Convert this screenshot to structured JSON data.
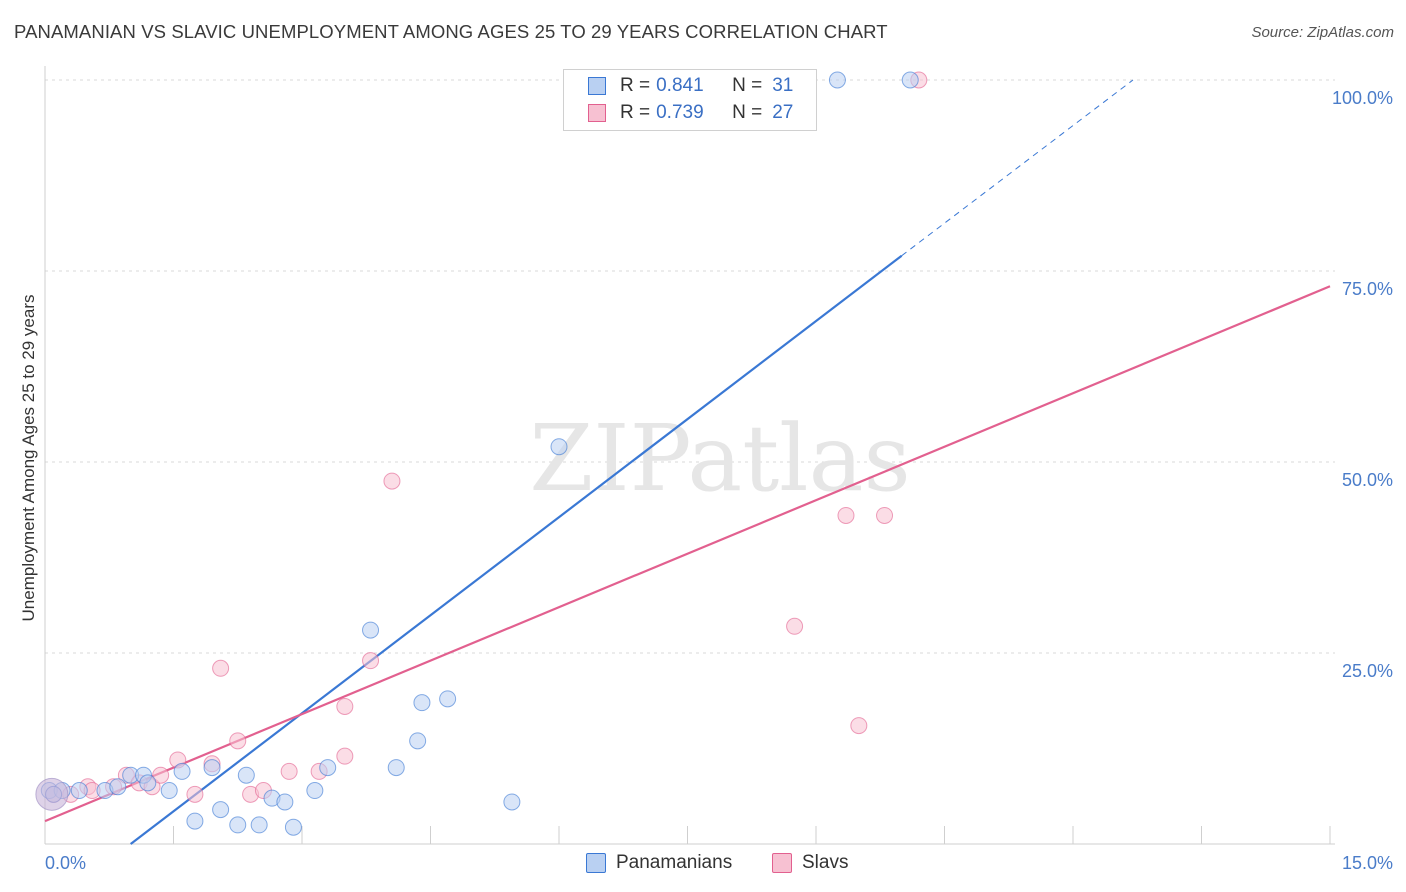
{
  "title": "PANAMANIAN VS SLAVIC UNEMPLOYMENT AMONG AGES 25 TO 29 YEARS CORRELATION CHART",
  "source": "Source: ZipAtlas.com",
  "colors": {
    "blue": "#3a78d4",
    "blue_fill": "#b9d0f2",
    "pink": "#e2608f",
    "pink_fill": "#f7c1d2",
    "grid": "#d8d8d8",
    "tick": "#4a7cc9"
  },
  "legend": {
    "rows": [
      {
        "r_label": "R =",
        "r_value": "0.841",
        "n_label": "N =",
        "n_value": "31"
      },
      {
        "r_label": "R =",
        "r_value": "0.739",
        "n_label": "N =",
        "n_value": "27"
      }
    ]
  },
  "bottom_legend": [
    "Panamanians",
    "Slavs"
  ],
  "watermark": "ZIPatlas",
  "chart_data": {
    "type": "scatter",
    "title": "PANAMANIAN VS SLAVIC UNEMPLOYMENT AMONG AGES 25 TO 29 YEARS CORRELATION CHART",
    "xlabel": "",
    "ylabel": "Unemployment Among Ages 25 to 29 years",
    "xlim": [
      0,
      15
    ],
    "ylim": [
      0,
      100
    ],
    "x_tick_labels": [
      "0.0%",
      "15.0%"
    ],
    "y_tick_labels": [
      "25.0%",
      "50.0%",
      "75.0%",
      "100.0%"
    ],
    "y_ticks": [
      25,
      50,
      75,
      100
    ],
    "series": [
      {
        "name": "Panamanians",
        "r": 0.841,
        "n": 31,
        "trend": {
          "x0": 1.0,
          "y0": 0,
          "x1": 10.0,
          "y1": 77,
          "dashed_to_x": 12.7,
          "dashed_to_y": 100
        },
        "points": [
          [
            0.05,
            7
          ],
          [
            0.2,
            7
          ],
          [
            0.4,
            7
          ],
          [
            0.7,
            7
          ],
          [
            0.85,
            7.5
          ],
          [
            1.0,
            9
          ],
          [
            1.15,
            9
          ],
          [
            1.2,
            8
          ],
          [
            1.45,
            7
          ],
          [
            1.6,
            9.5
          ],
          [
            1.75,
            3
          ],
          [
            1.95,
            10
          ],
          [
            2.05,
            4.5
          ],
          [
            2.25,
            2.5
          ],
          [
            2.35,
            9
          ],
          [
            2.5,
            2.5
          ],
          [
            2.65,
            6
          ],
          [
            2.8,
            5.5
          ],
          [
            2.9,
            2.2
          ],
          [
            3.15,
            7
          ],
          [
            3.3,
            10
          ],
          [
            3.8,
            28
          ],
          [
            4.1,
            10
          ],
          [
            4.35,
            13.5
          ],
          [
            4.4,
            18.5
          ],
          [
            4.7,
            19
          ],
          [
            5.45,
            5.5
          ],
          [
            6.0,
            52
          ],
          [
            9.25,
            100
          ],
          [
            10.1,
            100
          ],
          [
            0.1,
            6.5
          ]
        ]
      },
      {
        "name": "Slavs",
        "r": 0.739,
        "n": 27,
        "trend": {
          "x0": 0,
          "y0": 3,
          "x1": 15.0,
          "y1": 73
        },
        "points": [
          [
            0.1,
            6.5
          ],
          [
            0.3,
            6.5
          ],
          [
            0.5,
            7.5
          ],
          [
            0.8,
            7.5
          ],
          [
            0.95,
            9
          ],
          [
            1.1,
            8
          ],
          [
            1.25,
            7.5
          ],
          [
            1.55,
            11
          ],
          [
            1.75,
            6.5
          ],
          [
            1.95,
            10.5
          ],
          [
            2.05,
            23
          ],
          [
            2.25,
            13.5
          ],
          [
            2.4,
            6.5
          ],
          [
            2.55,
            7
          ],
          [
            2.85,
            9.5
          ],
          [
            3.2,
            9.5
          ],
          [
            3.5,
            18
          ],
          [
            3.5,
            11.5
          ],
          [
            3.8,
            24
          ],
          [
            4.05,
            47.5
          ],
          [
            8.75,
            28.5
          ],
          [
            9.35,
            43
          ],
          [
            9.5,
            15.5
          ],
          [
            9.8,
            43
          ],
          [
            10.2,
            100
          ],
          [
            0.55,
            7
          ],
          [
            1.35,
            9
          ]
        ]
      }
    ]
  }
}
